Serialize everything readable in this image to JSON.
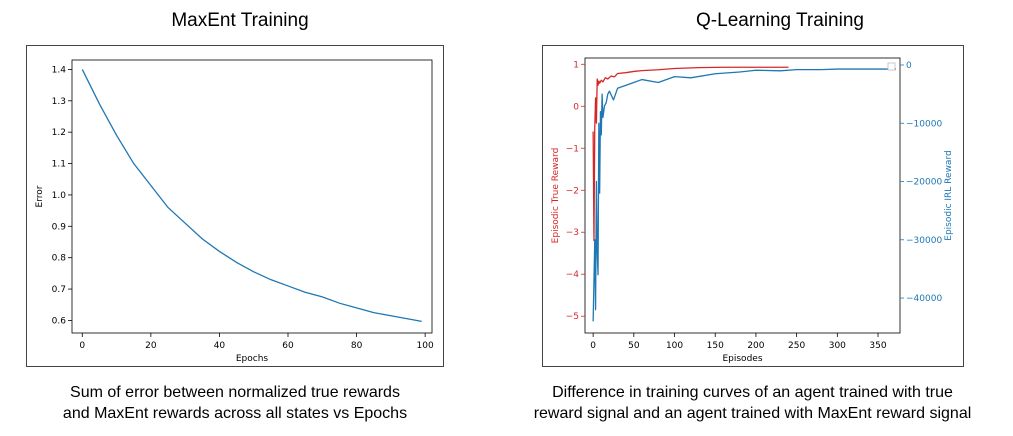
{
  "panels": [
    {
      "title": "MaxEnt Training",
      "caption_lines": [
        "Sum of error between normalized true rewards",
        "and MaxEnt rewards across all states vs Epochs"
      ]
    },
    {
      "title": "Q-Learning Training",
      "caption_lines": [
        "Difference in training curves of an agent trained with true",
        "reward signal and an agent trained with MaxEnt reward signal"
      ]
    }
  ],
  "chart_data": [
    {
      "type": "line",
      "title": "",
      "xlabel": "Epochs",
      "ylabel": "Error",
      "xlim": [
        -3,
        102
      ],
      "ylim": [
        0.56,
        1.43
      ],
      "xticks": [
        "0",
        "20",
        "40",
        "60",
        "80",
        "100"
      ],
      "yticks": [
        "0.6",
        "0.7",
        "0.8",
        "0.9",
        "1.0",
        "1.1",
        "1.2",
        "1.3",
        "1.4"
      ],
      "grid": false,
      "series": [
        {
          "color": "#1f77b4",
          "x": [
            0,
            5,
            10,
            15,
            20,
            25,
            30,
            35,
            40,
            45,
            50,
            55,
            60,
            65,
            70,
            75,
            80,
            85,
            90,
            95,
            99
          ],
          "y": [
            1.4,
            1.29,
            1.19,
            1.1,
            1.03,
            0.96,
            0.91,
            0.86,
            0.82,
            0.785,
            0.755,
            0.73,
            0.71,
            0.69,
            0.675,
            0.655,
            0.64,
            0.625,
            0.615,
            0.605,
            0.597
          ]
        }
      ]
    },
    {
      "type": "line",
      "title": "",
      "xlabel": "Episodes",
      "ylabel": "Episodic True Reward",
      "ylabel_right": "Episodic IRL Reward",
      "xlim": [
        -10,
        377
      ],
      "ylim": [
        -5.4,
        1.15
      ],
      "ylim_right": [
        -46000,
        1200
      ],
      "xticks": [
        "0",
        "50",
        "100",
        "150",
        "200",
        "250",
        "300",
        "350"
      ],
      "yticks": [
        "1",
        "0",
        "−1",
        "−2",
        "−3",
        "−4",
        "−5"
      ],
      "yticks_right": [
        "0",
        "−10000",
        "−20000",
        "−30000",
        "−40000"
      ],
      "grid": false,
      "legend": "top-right",
      "series": [
        {
          "axis": "left",
          "color": "#d62728",
          "x": [
            0,
            1,
            2,
            3,
            4,
            5,
            6,
            7,
            8,
            10,
            12,
            15,
            18,
            22,
            26,
            30,
            40,
            50,
            60,
            80,
            100,
            130,
            160,
            200,
            240
          ],
          "y": [
            -0.6,
            -3.2,
            -0.5,
            0.2,
            -0.4,
            0.65,
            0.5,
            0.6,
            0.55,
            0.62,
            0.58,
            0.68,
            0.65,
            0.72,
            0.7,
            0.78,
            0.8,
            0.83,
            0.85,
            0.87,
            0.9,
            0.92,
            0.93,
            0.93,
            0.93
          ]
        },
        {
          "axis": "right",
          "color": "#1f77b4",
          "x": [
            0,
            2,
            3,
            4,
            5,
            6,
            7,
            8,
            9,
            10,
            11,
            12,
            14,
            16,
            18,
            20,
            25,
            30,
            40,
            50,
            60,
            80,
            100,
            120,
            150,
            180,
            200,
            230,
            250,
            280,
            300,
            330,
            350,
            372
          ],
          "y": [
            -44000,
            -30000,
            -42000,
            -20000,
            -32000,
            -36000,
            -10000,
            -22000,
            -8000,
            -12000,
            -5000,
            -9000,
            -7000,
            -6500,
            -5000,
            -4500,
            -6000,
            -4000,
            -3500,
            -3000,
            -2500,
            -3000,
            -2000,
            -2200,
            -1500,
            -1200,
            -900,
            -1000,
            -800,
            -800,
            -700,
            -700,
            -700,
            -700
          ]
        }
      ]
    }
  ],
  "colors": {
    "line_blue": "#1f77b4",
    "line_red": "#d62728"
  }
}
